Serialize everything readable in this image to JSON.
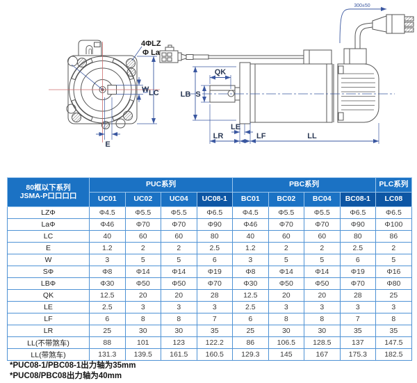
{
  "diagram": {
    "front": {
      "hole_label": "4ΦLZ",
      "flange_label": "Φ La",
      "w_label": "W",
      "lc_label": "LC",
      "e_label": "E"
    },
    "side": {
      "qk_label": "QK",
      "lb_label": "LB",
      "s_label": "S",
      "le_label": "LE",
      "lr_label": "LR",
      "lf_label": "LF",
      "ll_label": "LL",
      "cable_dim": "300±50"
    }
  },
  "table": {
    "corner_line1": "80框以下系列",
    "corner_line2": "JSMA-P口口口口",
    "groups": [
      {
        "label": "PUC系列",
        "span": 4
      },
      {
        "label": "PBC系列",
        "span": 4
      },
      {
        "label": "PLC系列",
        "span": 1
      }
    ],
    "models": [
      {
        "label": "UC01",
        "dark": false
      },
      {
        "label": "UC02",
        "dark": false
      },
      {
        "label": "UC04",
        "dark": false
      },
      {
        "label": "UC08-1",
        "dark": true
      },
      {
        "label": "BC01",
        "dark": false
      },
      {
        "label": "BC02",
        "dark": false
      },
      {
        "label": "BC04",
        "dark": false
      },
      {
        "label": "BC08-1",
        "dark": true
      },
      {
        "label": "LC08",
        "dark": true
      }
    ],
    "rows": [
      {
        "label": "LZΦ",
        "values": [
          "Φ4.5",
          "Φ5.5",
          "Φ5.5",
          "Φ6.5",
          "Φ4.5",
          "Φ5.5",
          "Φ5.5",
          "Φ6.5",
          "Φ6.5"
        ]
      },
      {
        "label": "LaΦ",
        "values": [
          "Φ46",
          "Φ70",
          "Φ70",
          "Φ90",
          "Φ46",
          "Φ70",
          "Φ70",
          "Φ90",
          "Φ100"
        ]
      },
      {
        "label": "LC",
        "values": [
          "40",
          "60",
          "60",
          "80",
          "40",
          "60",
          "60",
          "80",
          "86"
        ]
      },
      {
        "label": "E",
        "values": [
          "1.2",
          "2",
          "2",
          "2.5",
          "1.2",
          "2",
          "2",
          "2.5",
          "2"
        ]
      },
      {
        "label": "W",
        "values": [
          "3",
          "5",
          "5",
          "6",
          "3",
          "5",
          "5",
          "6",
          "5"
        ]
      },
      {
        "label": "SΦ",
        "values": [
          "Φ8",
          "Φ14",
          "Φ14",
          "Φ19",
          "Φ8",
          "Φ14",
          "Φ14",
          "Φ19",
          "Φ16"
        ]
      },
      {
        "label": "LBΦ",
        "values": [
          "Φ30",
          "Φ50",
          "Φ50",
          "Φ70",
          "Φ30",
          "Φ50",
          "Φ50",
          "Φ70",
          "Φ80"
        ]
      },
      {
        "label": "QK",
        "values": [
          "12.5",
          "20",
          "20",
          "28",
          "12.5",
          "20",
          "20",
          "28",
          "25"
        ]
      },
      {
        "label": "LE",
        "values": [
          "2.5",
          "3",
          "3",
          "3",
          "2.5",
          "3",
          "3",
          "3",
          "3"
        ]
      },
      {
        "label": "LF",
        "values": [
          "6",
          "8",
          "8",
          "7",
          "6",
          "8",
          "8",
          "7",
          "8"
        ]
      },
      {
        "label": "LR",
        "values": [
          "25",
          "30",
          "30",
          "35",
          "25",
          "30",
          "30",
          "35",
          "35"
        ]
      },
      {
        "label": "LL(不带煞车)",
        "values": [
          "88",
          "101",
          "123",
          "122.2",
          "86",
          "106.5",
          "128.5",
          "137",
          "147.5"
        ]
      },
      {
        "label": "LL(带煞车)",
        "values": [
          "131.3",
          "139.5",
          "161.5",
          "160.5",
          "129.3",
          "145",
          "167",
          "175.3",
          "182.5"
        ]
      }
    ]
  },
  "footnotes": [
    "*PUC08-1/PBC08-1出力轴为35mm",
    "*PUC08/PBC08出力轴为40mm"
  ],
  "colors": {
    "header_blue": "#1b72c4",
    "header_dark": "#0d56a4",
    "grid_blue": "#4e92d5",
    "dimension_blue": "#3a57a0",
    "centerline_red": "#cc6b6b",
    "outline_gray": "#555555"
  }
}
